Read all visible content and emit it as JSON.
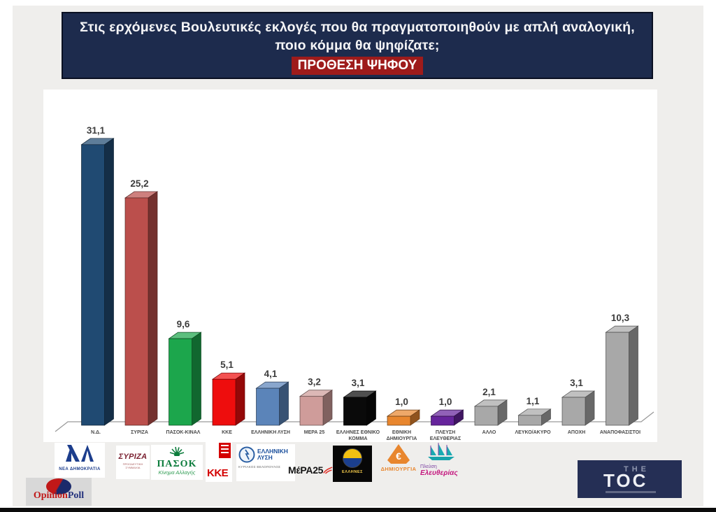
{
  "title": {
    "line1": "Στις ερχόμενες Βουλευτικές εκλογές που θα πραγματοποιηθούν με απλή αναλογική,",
    "line2": "ποιο κόμμα θα ψηφίζατε;",
    "line3": "ΠΡΟΘΕΣΗ ΨΗΦΟΥ"
  },
  "chart_data": {
    "type": "bar",
    "style": "3d-column",
    "title": "ΠΡΟΘΕΣΗ ΨΗΦΟΥ",
    "xlabel": "",
    "ylabel": "",
    "ylim": [
      0,
      35
    ],
    "grid": false,
    "legend": false,
    "categories": [
      "Ν.Δ.",
      "ΣΥΡΙΖΑ",
      "ΠΑΣΟΚ-ΚΙΝΑΛ",
      "ΚΚΕ",
      "ΕΛΛΗΝΙΚΗ ΛΥΣΗ",
      "ΜΕΡΑ 25",
      "ΕΛΛΗΝΕΣ ΕΘΝΙΚΟ ΚΟΜΜΑ",
      "ΕΘΝΙΚΗ ΔΗΜΙΟΥΡΓΙΑ",
      "ΠΛΕΥΣΗ ΕΛΕΥΘΕΡΙΑΣ",
      "ΑΛΛΟ",
      "ΛΕΥΚΟ/ΑΚΥΡΟ",
      "ΑΠΟΧΗ",
      "ΑΝΑΠΟΦΑΣΙΣΤΟΙ"
    ],
    "values": [
      31.1,
      25.2,
      9.6,
      5.1,
      4.1,
      3.2,
      3.1,
      1.0,
      1.0,
      2.1,
      1.1,
      3.1,
      10.3
    ],
    "labels": [
      "31,1",
      "25,2",
      "9,6",
      "5,1",
      "4,1",
      "3,2",
      "3,1",
      "1,0",
      "1,0",
      "2,1",
      "1,1",
      "3,1",
      "10,3"
    ],
    "colors": [
      "#204a72",
      "#bb4f4c",
      "#1ca64c",
      "#ee0d0d",
      "#5b84b9",
      "#cf9c9a",
      "#0a0a0a",
      "#e8862e",
      "#66249c",
      "#a8a8a8",
      "#a8a8a8",
      "#a8a8a8",
      "#a8a8a8"
    ]
  },
  "party_logos": [
    {
      "id": "nea-dimokratia",
      "name": "ΝΕΑ ΔΗΜΟΚΡΑΤΙΑ"
    },
    {
      "id": "syriza",
      "name": "ΣΥΡΙΖΑ",
      "tagline": "ΠΡΟΟΔΕΥΤΙΚΗ ΣΥΜΜΑΧΙΑ"
    },
    {
      "id": "pasok",
      "name": "ΠΑΣΟΚ",
      "tagline": "Κίνημα Αλλαγής"
    },
    {
      "id": "kke",
      "name": "ΚΚΕ"
    },
    {
      "id": "elliniki-lysi",
      "name": "ΕΛΛΗΝΙΚΗ ΛΥΣΗ",
      "tagline": "ΚΥΡΙΑΚΟΣ ΒΕΛΟΠΟΥΛΟΣ"
    },
    {
      "id": "mera25",
      "name": "ΜέΡΑ25"
    },
    {
      "id": "ellines",
      "name": "ΕΛΛΗΝΕΣ"
    },
    {
      "id": "dimiourgia",
      "symbol": "€",
      "name": "ΔΗΜΙΟΥΡΓΙΑ"
    },
    {
      "id": "plefsi-eleftherias",
      "line1": "Πλεύση",
      "line2": "Ελευθερίας"
    }
  ],
  "branding": {
    "pollster": {
      "part1": "Opinion",
      "part2": "Poll"
    },
    "outlet": {
      "line1": "THE",
      "line2": "TOC"
    }
  },
  "colors": {
    "question_bg": "#1d2b4d",
    "badge_bg": "#9e1b1b",
    "page_bg": "#efeeec",
    "toc_navy": "#252f55",
    "opinion_red": "#c01818",
    "opinion_navy": "#22307c"
  }
}
